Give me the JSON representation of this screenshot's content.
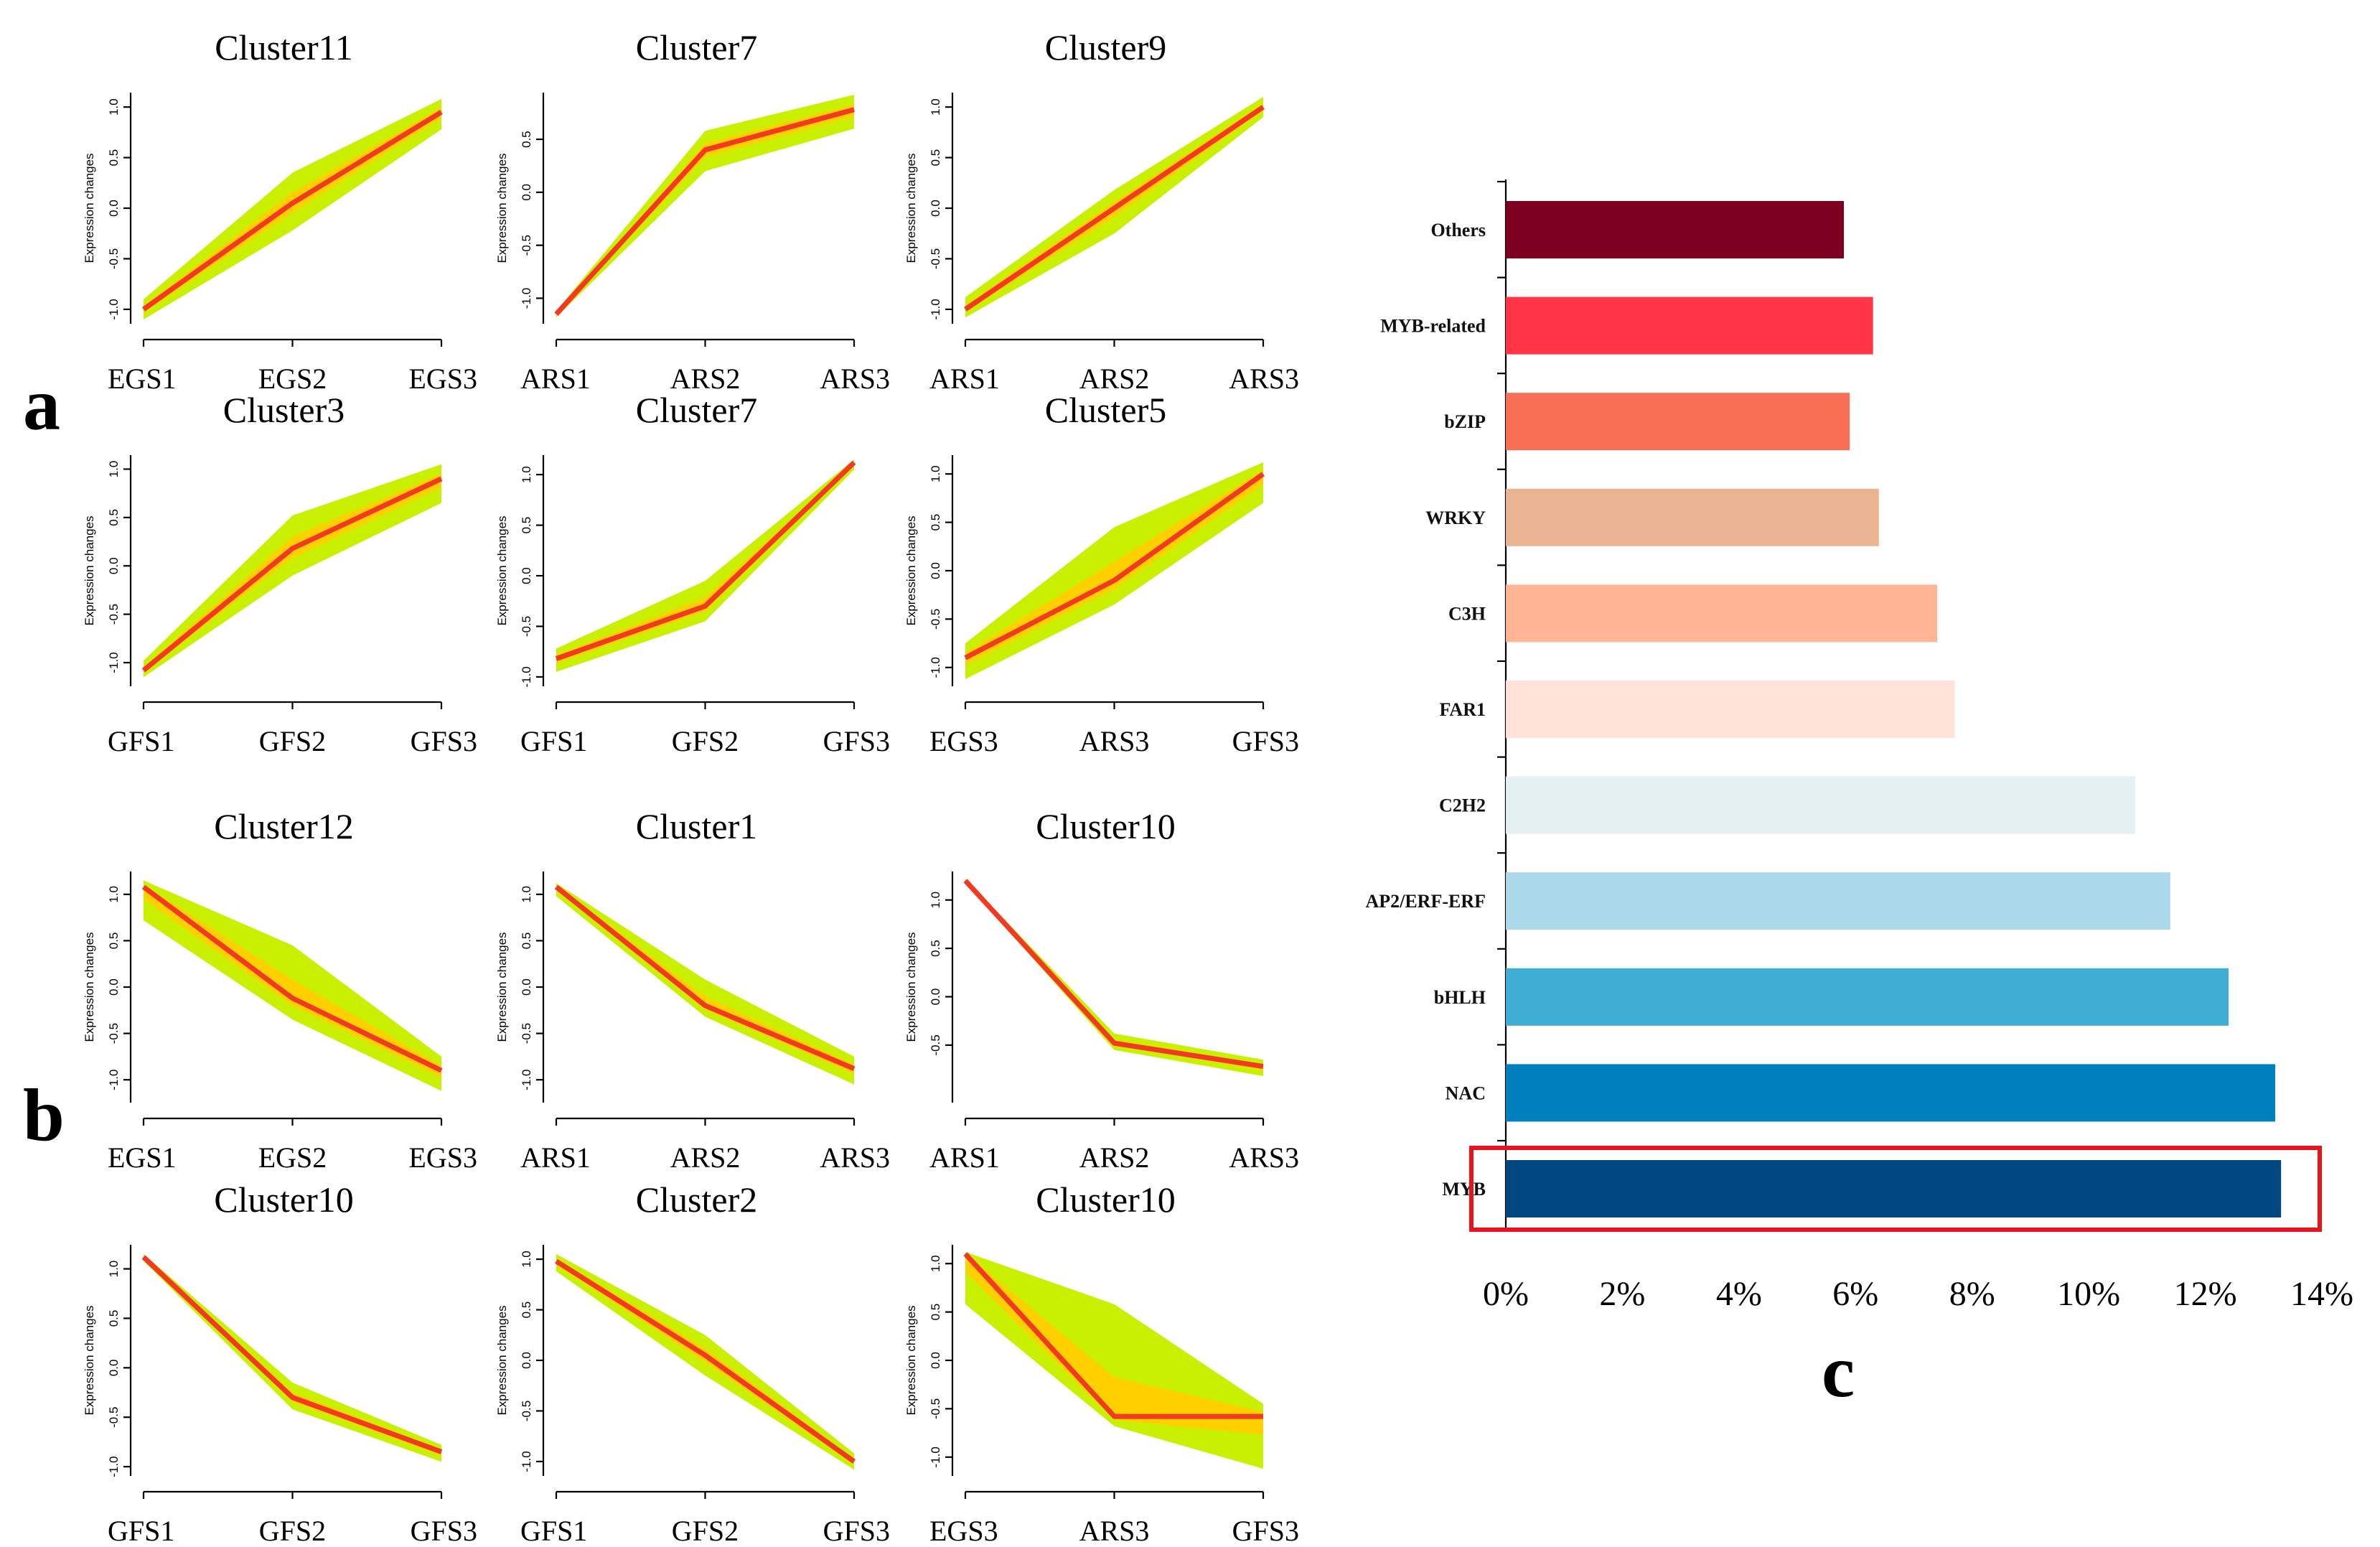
{
  "panel_labels": {
    "a": "a",
    "b": "b",
    "c": "c"
  },
  "axis_common": {
    "ylabel": "Expression changes",
    "colors": {
      "band": "#c8f000",
      "band_core": "#ffd000",
      "mean": "#f03a22"
    }
  },
  "chart_data": [
    {
      "type": "line",
      "title": "Cluster11",
      "categories": [
        "EGS1",
        "EGS2",
        "EGS3"
      ],
      "ylim": [
        -1.1,
        1.1
      ],
      "yticks": [
        "-1.0",
        "-0.5",
        "0.0",
        "0.5",
        "1.0"
      ],
      "ylabel": "Expression changes",
      "series": [
        {
          "values": [
            -1.0,
            0.05,
            0.95
          ]
        }
      ],
      "band_upper": [
        -0.9,
        0.35,
        1.08
      ],
      "band_lower": [
        -1.1,
        -0.22,
        0.78
      ]
    },
    {
      "type": "line",
      "title": "Cluster7",
      "categories": [
        "ARS1",
        "ARS2",
        "ARS3"
      ],
      "ylim": [
        -1.2,
        0.9
      ],
      "yticks": [
        "-1.0",
        "-0.5",
        "0.0",
        "0.5"
      ],
      "ylabel": "Expression changes",
      "series": [
        {
          "values": [
            -1.15,
            0.4,
            0.78
          ]
        }
      ],
      "band_upper": [
        -1.12,
        0.58,
        0.92
      ],
      "band_lower": [
        -1.18,
        0.2,
        0.6
      ]
    },
    {
      "type": "line",
      "title": "Cluster9",
      "categories": [
        "ARS1",
        "ARS2",
        "ARS3"
      ],
      "ylim": [
        -1.1,
        1.1
      ],
      "yticks": [
        "-1.0",
        "-0.5",
        "0.0",
        "0.5",
        "1.0"
      ],
      "ylabel": "Expression changes",
      "series": [
        {
          "values": [
            -1.0,
            0.0,
            1.0
          ]
        }
      ],
      "band_upper": [
        -0.88,
        0.18,
        1.1
      ],
      "band_lower": [
        -1.08,
        -0.25,
        0.9
      ]
    },
    {
      "type": "line",
      "title": "Cluster3",
      "categories": [
        "GFS1",
        "GFS2",
        "GFS3"
      ],
      "ylim": [
        -1.2,
        1.1
      ],
      "yticks": [
        "-1.0",
        "-0.5",
        "0.0",
        "0.5",
        "1.0"
      ],
      "ylabel": "Expression changes",
      "series": [
        {
          "values": [
            -1.08,
            0.18,
            0.9
          ]
        }
      ],
      "band_upper": [
        -0.98,
        0.52,
        1.05
      ],
      "band_lower": [
        -1.15,
        -0.1,
        0.65
      ]
    },
    {
      "type": "line",
      "title": "Cluster7",
      "categories": [
        "GFS1",
        "GFS2",
        "GFS3"
      ],
      "ylim": [
        -1.05,
        1.15
      ],
      "yticks": [
        "-1.0",
        "-0.5",
        "0.0",
        "0.5",
        "1.0"
      ],
      "ylabel": "Expression changes",
      "series": [
        {
          "values": [
            -0.82,
            -0.3,
            1.12
          ]
        }
      ],
      "band_upper": [
        -0.72,
        -0.05,
        1.15
      ],
      "band_lower": [
        -0.95,
        -0.45,
        1.05
      ]
    },
    {
      "type": "line",
      "title": "Cluster5",
      "categories": [
        "EGS3",
        "ARS3",
        "GFS3"
      ],
      "ylim": [
        -1.15,
        1.15
      ],
      "yticks": [
        "-1.0",
        "-0.5",
        "0.0",
        "0.5",
        "1.0"
      ],
      "ylabel": "Expression changes",
      "series": [
        {
          "values": [
            -0.9,
            -0.1,
            1.0
          ]
        }
      ],
      "band_upper": [
        -0.75,
        0.45,
        1.12
      ],
      "band_lower": [
        -1.12,
        -0.35,
        0.7
      ]
    },
    {
      "type": "line",
      "title": "Cluster12",
      "categories": [
        "EGS1",
        "EGS2",
        "EGS3"
      ],
      "ylim": [
        -1.2,
        1.2
      ],
      "yticks": [
        "-1.0",
        "-0.5",
        "0.0",
        "0.5",
        "1.0"
      ],
      "ylabel": "Expression changes",
      "series": [
        {
          "values": [
            1.08,
            -0.12,
            -0.9
          ]
        }
      ],
      "band_upper": [
        1.15,
        0.45,
        -0.75
      ],
      "band_lower": [
        0.72,
        -0.35,
        -1.12
      ]
    },
    {
      "type": "line",
      "title": "Cluster1",
      "categories": [
        "ARS1",
        "ARS2",
        "ARS3"
      ],
      "ylim": [
        -1.2,
        1.2
      ],
      "yticks": [
        "-1.0",
        "-0.5",
        "0.0",
        "0.5",
        "1.0"
      ],
      "ylabel": "Expression changes",
      "series": [
        {
          "values": [
            1.08,
            -0.2,
            -0.88
          ]
        }
      ],
      "band_upper": [
        1.12,
        0.08,
        -0.75
      ],
      "band_lower": [
        0.98,
        -0.32,
        -1.05
      ]
    },
    {
      "type": "line",
      "title": "Cluster10",
      "categories": [
        "ARS1",
        "ARS2",
        "ARS3"
      ],
      "ylim": [
        -1.05,
        1.25
      ],
      "yticks": [
        "-0.5",
        "0.0",
        "0.5",
        "1.0"
      ],
      "ylabel": "Expression changes",
      "series": [
        {
          "values": [
            1.2,
            -0.48,
            -0.72
          ]
        }
      ],
      "band_upper": [
        1.22,
        -0.38,
        -0.65
      ],
      "band_lower": [
        1.18,
        -0.55,
        -0.82
      ]
    },
    {
      "type": "line",
      "title": "Cluster10",
      "categories": [
        "GFS1",
        "GFS2",
        "GFS3"
      ],
      "ylim": [
        -1.05,
        1.2
      ],
      "yticks": [
        "-1.0",
        "-0.5",
        "0.0",
        "0.5",
        "1.0"
      ],
      "ylabel": "Expression changes",
      "series": [
        {
          "values": [
            1.12,
            -0.3,
            -0.85
          ]
        }
      ],
      "band_upper": [
        1.15,
        -0.15,
        -0.78
      ],
      "band_lower": [
        1.08,
        -0.42,
        -0.95
      ]
    },
    {
      "type": "line",
      "title": "Cluster2",
      "categories": [
        "GFS1",
        "GFS2",
        "GFS3"
      ],
      "ylim": [
        -1.1,
        1.1
      ],
      "yticks": [
        "-1.0",
        "-0.5",
        "0.0",
        "0.5",
        "1.0"
      ],
      "ylabel": "Expression changes",
      "series": [
        {
          "values": [
            0.98,
            0.05,
            -1.0
          ]
        }
      ],
      "band_upper": [
        1.05,
        0.25,
        -0.92
      ],
      "band_lower": [
        0.88,
        -0.15,
        -1.08
      ]
    },
    {
      "type": "line",
      "title": "Cluster10",
      "categories": [
        "EGS3",
        "ARS3",
        "GFS3"
      ],
      "ylim": [
        -1.15,
        1.15
      ],
      "yticks": [
        "-1.0",
        "-0.5",
        "0.0",
        "0.5",
        "1.0"
      ],
      "ylabel": "Expression changes",
      "series": [
        {
          "values": [
            1.1,
            -0.58,
            -0.58
          ]
        }
      ],
      "band_upper": [
        1.12,
        0.58,
        -0.45
      ],
      "band_lower": [
        0.58,
        -0.68,
        -1.12
      ]
    },
    {
      "type": "bar",
      "orientation": "horizontal",
      "categories": [
        "Others",
        "MYB-related",
        "bZIP",
        "WRKY",
        "C3H",
        "FAR1",
        "C2H2",
        "AP2/ERF-ERF",
        "bHLH",
        "NAC",
        "MYB"
      ],
      "values": [
        5.8,
        6.3,
        5.9,
        6.4,
        7.4,
        7.7,
        10.8,
        11.4,
        12.4,
        13.2,
        13.3
      ],
      "colors": [
        "#7e0020",
        "#ff3444",
        "#f86f56",
        "#eab392",
        "#ffb594",
        "#ffe3d8",
        "#e5f0f3",
        "#acd9e9",
        "#3eaed5",
        "#0080bd",
        "#00477f"
      ],
      "xlim": [
        0,
        14
      ],
      "xticks": [
        "0%",
        "2%",
        "4%",
        "6%",
        "8%",
        "10%",
        "12%",
        "14%"
      ],
      "highlight": "MYB",
      "highlight_color": "#e8141c"
    }
  ]
}
